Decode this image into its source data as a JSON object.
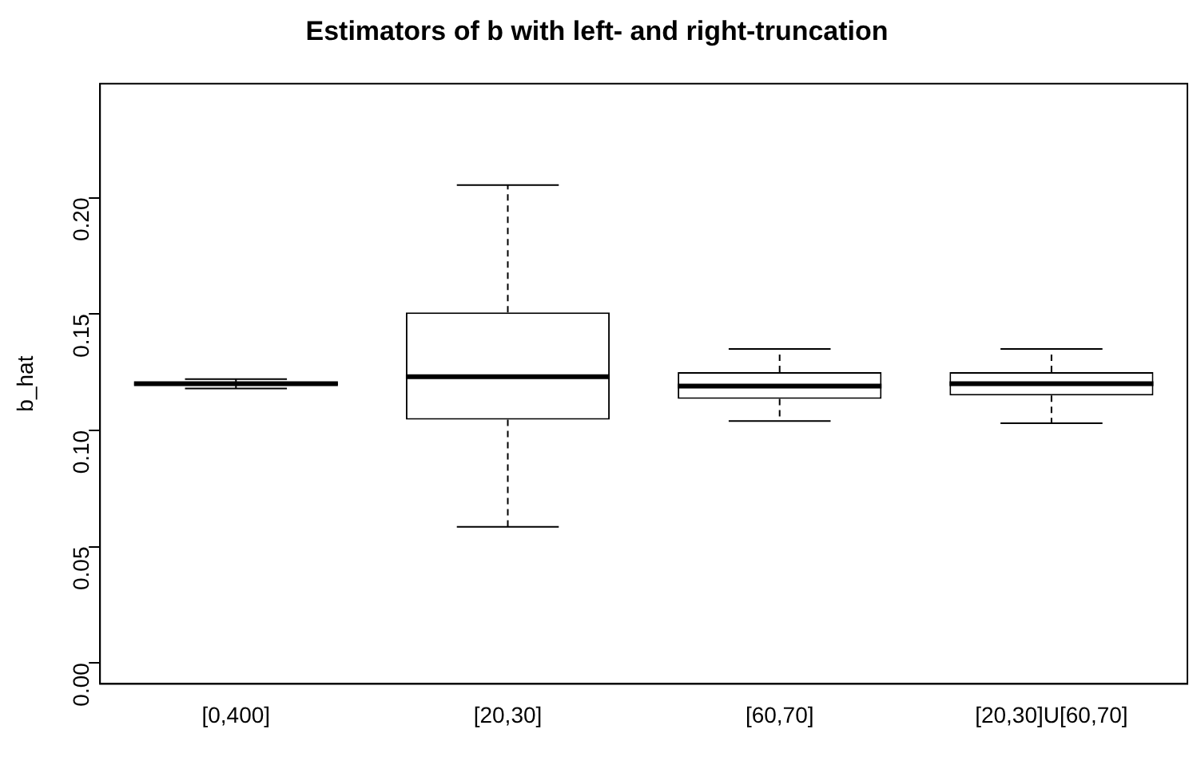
{
  "chart_data": {
    "type": "box",
    "title": "Estimators of b with left- and right-truncation",
    "ylabel": "b_hat",
    "categories": [
      "[0,400]",
      "[20,30]",
      "[60,70]",
      "[20,30]U[60,70]"
    ],
    "boxes": [
      {
        "low": 0.118,
        "q1": 0.1195,
        "median": 0.12,
        "q3": 0.1205,
        "high": 0.122
      },
      {
        "low": 0.0585,
        "q1": 0.1046,
        "median": 0.123,
        "q3": 0.1507,
        "high": 0.2054
      },
      {
        "low": 0.104,
        "q1": 0.1135,
        "median": 0.119,
        "q3": 0.125,
        "high": 0.135
      },
      {
        "low": 0.103,
        "q1": 0.115,
        "median": 0.12,
        "q3": 0.125,
        "high": 0.135
      }
    ],
    "ylim": [
      -0.009,
      0.249
    ],
    "yticks": [
      {
        "value": 0,
        "label": "0.00"
      },
      {
        "value": 0.05,
        "label": "0.05"
      },
      {
        "value": 0.1,
        "label": "0.10"
      },
      {
        "value": 0.15,
        "label": "0.15"
      },
      {
        "value": 0.2,
        "label": "0.20"
      }
    ],
    "grid": false,
    "legend": false
  }
}
